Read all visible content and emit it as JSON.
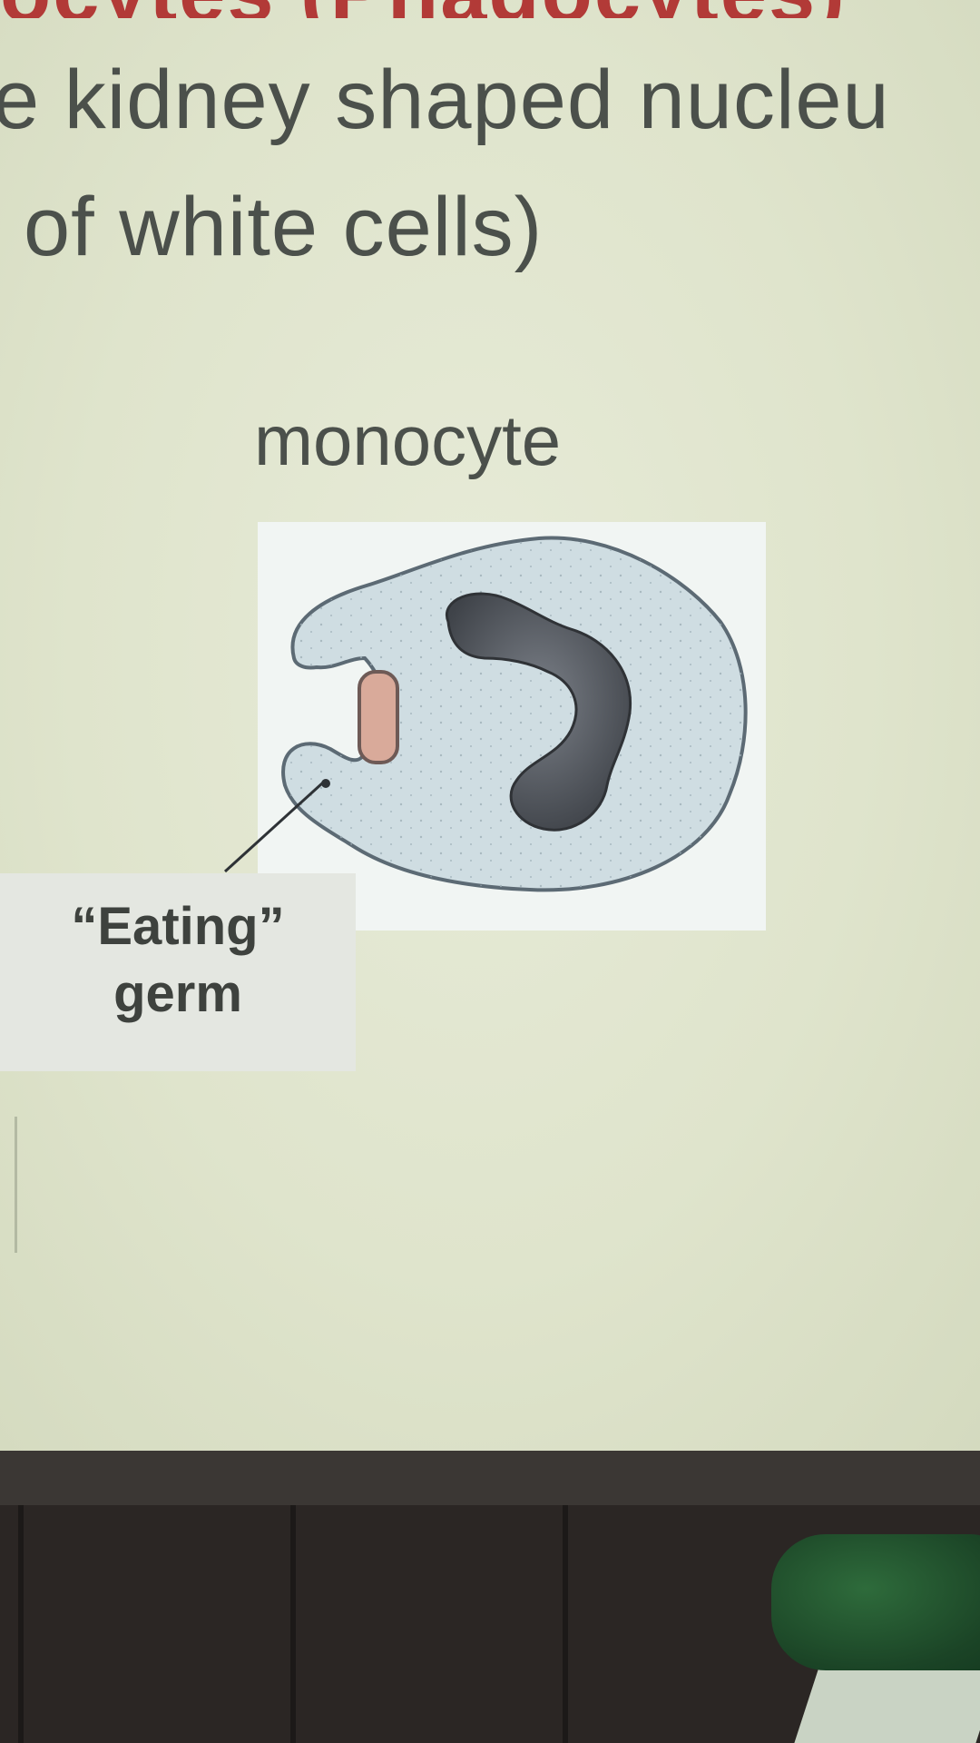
{
  "slide": {
    "title_fragment": "ocytes (Phagocytes)",
    "line1": "e kidney shaped nucleu",
    "line2": "of white cells)",
    "caption": "monocyte"
  },
  "callout": {
    "line1": "“Eating”",
    "line2": "germ"
  },
  "colors": {
    "slide_background": "#e2e7d0",
    "title_red": "#b23a37",
    "body_text": "#4b504b",
    "cytoplasm": "#cfdde2",
    "nucleus": "#555a60",
    "germ": "#d9aa9a"
  }
}
